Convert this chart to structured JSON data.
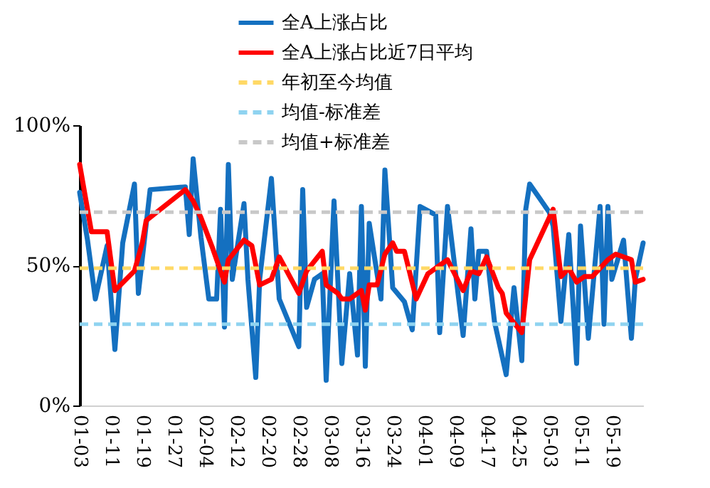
{
  "chart_data": {
    "type": "line",
    "xlim": [
      "--01-03",
      "--05-27"
    ],
    "xticks": [
      {
        "value": "--01-03",
        "label": "01-03"
      },
      {
        "value": "--01-11",
        "label": "01-11"
      },
      {
        "value": "--01-19",
        "label": "01-19"
      },
      {
        "value": "--01-27",
        "label": "01-27"
      },
      {
        "value": "--02-04",
        "label": "02-04"
      },
      {
        "value": "--02-12",
        "label": "02-12"
      },
      {
        "value": "--02-20",
        "label": "02-20"
      },
      {
        "value": "--02-28",
        "label": "02-28"
      },
      {
        "value": "--03-08",
        "label": "03-08"
      },
      {
        "value": "--03-16",
        "label": "03-16"
      },
      {
        "value": "--03-24",
        "label": "03-24"
      },
      {
        "value": "--04-01",
        "label": "04-01"
      },
      {
        "value": "--04-09",
        "label": "04-09"
      },
      {
        "value": "--04-17",
        "label": "04-17"
      },
      {
        "value": "--04-25",
        "label": "04-25"
      },
      {
        "value": "--05-03",
        "label": "05-03"
      },
      {
        "value": "--05-11",
        "label": "05-11"
      },
      {
        "value": "--05-19",
        "label": "05-19"
      }
    ],
    "ylim": [
      0,
      100
    ],
    "yticks": [
      {
        "value": 0,
        "label": "0%"
      },
      {
        "value": 50,
        "label": "50%"
      },
      {
        "value": 100,
        "label": "100%"
      }
    ],
    "series": [
      {
        "name": "全A上涨占比",
        "color": "#1470c0",
        "line_style": "solid",
        "x": [
          "--01-03",
          "--01-05",
          "--01-07",
          "--01-10",
          "--01-12",
          "--01-14",
          "--01-17",
          "--01-18",
          "--01-21",
          "--01-30",
          "--01-31",
          "--02-01",
          "--02-03",
          "--02-05",
          "--02-07",
          "--02-08",
          "--02-09",
          "--02-10",
          "--02-11",
          "--02-14",
          "--02-15",
          "--02-17",
          "--02-18",
          "--02-21",
          "--02-23",
          "--02-28",
          "--03-01",
          "--03-02",
          "--03-04",
          "--03-06",
          "--03-07",
          "--03-09",
          "--03-11",
          "--03-13",
          "--03-15",
          "--03-16",
          "--03-17",
          "--03-18",
          "--03-21",
          "--03-22",
          "--03-24",
          "--03-27",
          "--03-29",
          "--03-31",
          "--04-04",
          "--04-05",
          "--04-07",
          "--04-11",
          "--04-13",
          "--04-14",
          "--04-15",
          "--04-17",
          "--04-19",
          "--04-22",
          "--04-24",
          "--04-26",
          "--04-27",
          "--04-28",
          "--05-03",
          "--05-04",
          "--05-06",
          "--05-08",
          "--05-10",
          "--05-11",
          "--05-13",
          "--05-16",
          "--05-17",
          "--05-18",
          "--05-19",
          "--05-22",
          "--05-24",
          "--05-25",
          "--05-27"
        ],
        "values": [
          76,
          59,
          38,
          57,
          20,
          58,
          79,
          40,
          77,
          78,
          61,
          88,
          60,
          38,
          38,
          70,
          28,
          86,
          45,
          72,
          45,
          10,
          45,
          81,
          38,
          21,
          77,
          35,
          45,
          47,
          9,
          73,
          15,
          47,
          18,
          71,
          14,
          65,
          38,
          84,
          42,
          37,
          27,
          71,
          68,
          26,
          71,
          25,
          63,
          38,
          55,
          55,
          30,
          11,
          42,
          16,
          70,
          79,
          69,
          64,
          30,
          61,
          15,
          64,
          24,
          71,
          29,
          71,
          45,
          59,
          24,
          45,
          58
        ]
      },
      {
        "name": "全A上涨占比近7日平均",
        "color": "#ff0000",
        "line_style": "solid",
        "x": [
          "--01-03",
          "--01-06",
          "--01-10",
          "--01-12",
          "--01-17",
          "--01-19",
          "--01-20",
          "--01-30",
          "--02-01",
          "--02-03",
          "--02-06",
          "--02-09",
          "--02-10",
          "--02-14",
          "--02-16",
          "--02-18",
          "--02-21",
          "--02-23",
          "--02-28",
          "--03-02",
          "--03-06",
          "--03-07",
          "--03-10",
          "--03-11",
          "--03-13",
          "--03-16",
          "--03-17",
          "--03-18",
          "--03-20",
          "--03-22",
          "--03-24",
          "--03-25",
          "--03-27",
          "--03-30",
          "--04-02",
          "--04-07",
          "--04-11",
          "--04-13",
          "--04-15",
          "--04-17",
          "--04-20",
          "--04-21",
          "--04-22",
          "--04-26",
          "--04-28",
          "--05-04",
          "--05-06",
          "--05-08",
          "--05-10",
          "--05-12",
          "--05-14",
          "--05-18",
          "--05-20",
          "--05-24",
          "--05-25",
          "--05-27"
        ],
        "values": [
          86,
          62,
          62,
          41,
          48,
          58,
          66,
          77,
          73,
          67,
          56,
          44,
          52,
          59,
          57,
          43,
          45,
          53,
          40,
          48,
          55,
          43,
          40,
          38,
          38,
          41,
          34,
          43,
          43,
          54,
          58,
          55,
          55,
          38,
          47,
          52,
          41,
          48,
          47,
          53,
          42,
          40,
          33,
          26,
          52,
          70,
          46,
          49,
          44,
          46,
          46,
          52,
          54,
          52,
          44,
          45
        ]
      }
    ],
    "ref_lines": [
      {
        "axis": "y",
        "value": 49,
        "label": "年初至今均值",
        "color": "#ffd966",
        "line_style": "dashed"
      },
      {
        "axis": "y",
        "value": 29,
        "label": "均值-标准差",
        "color": "#8fd3f0",
        "line_style": "dashed"
      },
      {
        "axis": "y",
        "value": 69,
        "label": "均值+标准差",
        "color": "#c8c8c8",
        "line_style": "dashed"
      }
    ],
    "legend": "top",
    "grid": false
  }
}
